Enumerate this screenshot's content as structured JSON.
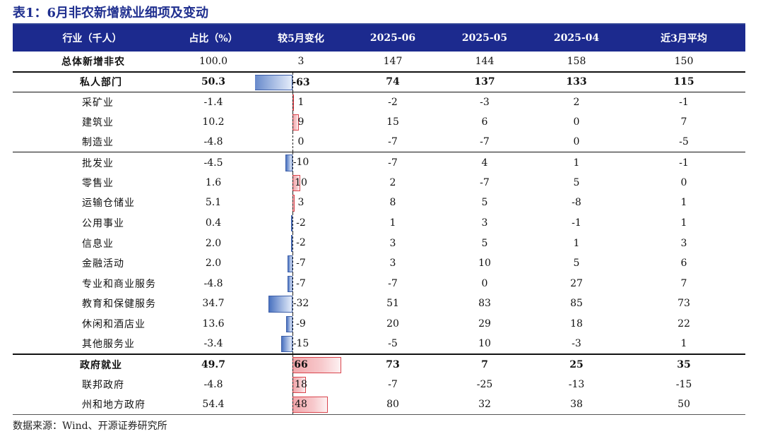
{
  "title": "表1：6月非农新增就业细项及变动",
  "columns": [
    "行业（千人）",
    "占比（%）",
    "较5月变化",
    "2025-06",
    "2025-05",
    "2025-04",
    "近3月平均"
  ],
  "rows": [
    {
      "name": "总体新增非农",
      "share": "100.0",
      "change": "3",
      "change_value": 3,
      "jun": "147",
      "may": "144",
      "apr": "158",
      "avg3m": "150"
    },
    {
      "name": "私人部门",
      "share": "50.3",
      "change": "-63",
      "change_value": -63,
      "jun": "74",
      "may": "137",
      "apr": "133",
      "avg3m": "115"
    },
    {
      "name": "采矿业",
      "share": "-1.4",
      "change": "1",
      "change_value": 1,
      "jun": "-2",
      "may": "-3",
      "apr": "2",
      "avg3m": "-1"
    },
    {
      "name": "建筑业",
      "share": "10.2",
      "change": "9",
      "change_value": 9,
      "jun": "15",
      "may": "6",
      "apr": "0",
      "avg3m": "7"
    },
    {
      "name": "制造业",
      "share": "-4.8",
      "change": "0",
      "change_value": 0,
      "jun": "-7",
      "may": "-7",
      "apr": "0",
      "avg3m": "-5"
    },
    {
      "name": "批发业",
      "share": "-4.5",
      "change": "-10",
      "change_value": -10,
      "jun": "-7",
      "may": "4",
      "apr": "1",
      "avg3m": "-1"
    },
    {
      "name": "零售业",
      "share": "1.6",
      "change": "10",
      "change_value": 10,
      "jun": "2",
      "may": "-7",
      "apr": "5",
      "avg3m": "0"
    },
    {
      "name": "运输仓储业",
      "share": "5.1",
      "change": "3",
      "change_value": 3,
      "jun": "8",
      "may": "5",
      "apr": "-8",
      "avg3m": "1"
    },
    {
      "name": "公用事业",
      "share": "0.4",
      "change": "-2",
      "change_value": -2,
      "jun": "1",
      "may": "3",
      "apr": "-1",
      "avg3m": "1"
    },
    {
      "name": "信息业",
      "share": "2.0",
      "change": "-2",
      "change_value": -2,
      "jun": "3",
      "may": "5",
      "apr": "1",
      "avg3m": "3"
    },
    {
      "name": "金融活动",
      "share": "2.0",
      "change": "-7",
      "change_value": -7,
      "jun": "3",
      "may": "10",
      "apr": "5",
      "avg3m": "6"
    },
    {
      "name": "专业和商业服务",
      "share": "-4.8",
      "change": "-7",
      "change_value": -7,
      "jun": "-7",
      "may": "0",
      "apr": "27",
      "avg3m": "7"
    },
    {
      "name": "教育和保健服务",
      "share": "34.7",
      "change": "-32",
      "change_value": -32,
      "jun": "51",
      "may": "83",
      "apr": "85",
      "avg3m": "73"
    },
    {
      "name": "休闲和酒店业",
      "share": "13.6",
      "change": "-9",
      "change_value": -9,
      "jun": "20",
      "may": "29",
      "apr": "18",
      "avg3m": "22"
    },
    {
      "name": "其他服务业",
      "share": "-3.4",
      "change": "-15",
      "change_value": -15,
      "jun": "-5",
      "may": "10",
      "apr": "-3",
      "avg3m": "1"
    },
    {
      "name": "政府就业",
      "share": "49.7",
      "change": "66",
      "change_value": 66,
      "jun": "73",
      "may": "7",
      "apr": "25",
      "avg3m": "35"
    },
    {
      "name": "联邦政府",
      "share": "-4.8",
      "change": "18",
      "change_value": 18,
      "jun": "-7",
      "may": "-25",
      "apr": "-13",
      "avg3m": "-15"
    },
    {
      "name": "州和地方政府",
      "share": "54.4",
      "change": "48",
      "change_value": 48,
      "jun": "80",
      "may": "32",
      "apr": "38",
      "avg3m": "50"
    }
  ],
  "source": "数据来源：Wind、开源证券研究所",
  "colors": {
    "header_bg": "#1c2a8e",
    "title": "#1f2f8f",
    "bar_negative": "#4a72c0",
    "bar_positive": "#f1a7ab"
  }
}
